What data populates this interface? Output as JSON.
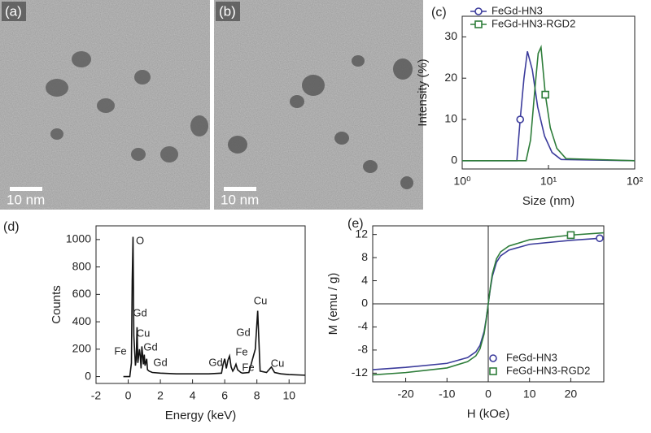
{
  "chart_data": [
    {
      "type": "image",
      "label": "(a)",
      "scale_bar": "10 nm"
    },
    {
      "type": "image",
      "label": "(b)",
      "scale_bar": "10 nm"
    },
    {
      "type": "line",
      "label": "(c)",
      "xlabel": "Size (nm)",
      "ylabel": "Intensity (%)",
      "log_x": true,
      "xlim": [
        1,
        100
      ],
      "xticks": [
        {
          "value": 1,
          "label": "10⁰"
        },
        {
          "value": 10,
          "label": "10¹"
        },
        {
          "value": 100,
          "label": "10²"
        }
      ],
      "ylim": [
        -2,
        35
      ],
      "yticks": [
        0,
        10,
        20,
        30
      ],
      "legend": "upper center",
      "series": [
        {
          "name": "FeGd-HN3",
          "color": "#3c3c9c",
          "marker": "circle",
          "x": [
            1,
            4.3,
            4.7,
            5.2,
            5.7,
            6.5,
            7.5,
            9,
            11,
            14,
            100
          ],
          "values": [
            0,
            0,
            10,
            20,
            26.5,
            22,
            13,
            6,
            2,
            0.3,
            0
          ]
        },
        {
          "name": "FeGd-HN3-RGD2",
          "color": "#2e7d3a",
          "marker": "square",
          "x": [
            1,
            5.5,
            6.2,
            7,
            7.6,
            8.2,
            9.2,
            10.5,
            12.5,
            16,
            100
          ],
          "values": [
            0,
            0,
            5,
            18,
            26,
            27.5,
            16,
            8,
            3,
            0.5,
            0
          ]
        }
      ]
    },
    {
      "type": "line",
      "label": "(d)",
      "xlabel": "Energy (keV)",
      "ylabel": "Counts",
      "xlim": [
        -2,
        11
      ],
      "xticks": [
        -2,
        0,
        2,
        4,
        6,
        8,
        10
      ],
      "ylim": [
        -50,
        1100
      ],
      "yticks": [
        0,
        200,
        400,
        600,
        800,
        1000
      ],
      "annotations": [
        "O",
        "Gd",
        "Cu",
        "Gd",
        "Fe",
        "Gd",
        "Gd",
        "Fe",
        "Fe",
        "Gd",
        "Cu",
        "Cu"
      ],
      "series": [
        {
          "name": null,
          "color": "#111111",
          "x": [
            -0.3,
            0.1,
            0.2,
            0.25,
            0.3,
            0.35,
            0.45,
            0.5,
            0.55,
            0.6,
            0.7,
            0.75,
            0.8,
            0.85,
            0.95,
            1.0,
            1.05,
            1.15,
            1.2,
            1.3,
            1.5,
            2,
            3,
            4,
            5,
            5.8,
            5.9,
            6.0,
            6.1,
            6.2,
            6.3,
            6.4,
            6.5,
            6.6,
            6.7,
            6.8,
            6.9,
            7.0,
            7.1,
            7.5,
            7.9,
            8.05,
            8.2,
            8.6,
            8.9,
            9.1,
            9.5,
            10,
            11
          ],
          "values": [
            0,
            0,
            100,
            700,
            1020,
            300,
            80,
            130,
            360,
            100,
            200,
            150,
            60,
            220,
            90,
            160,
            80,
            130,
            50,
            40,
            30,
            25,
            20,
            20,
            20,
            25,
            90,
            130,
            60,
            120,
            150,
            70,
            40,
            60,
            90,
            50,
            40,
            30,
            25,
            30,
            200,
            480,
            40,
            30,
            70,
            30,
            20,
            15,
            10
          ]
        }
      ]
    },
    {
      "type": "line",
      "label": "(e)",
      "xlabel": "H (kOe)",
      "ylabel": "M (emu / g)",
      "xlim": [
        -28,
        28
      ],
      "xticks": [
        -20,
        -10,
        0,
        10,
        20
      ],
      "ylim": [
        -13.5,
        13.5
      ],
      "yticks": [
        -12,
        -8,
        -4,
        0,
        4,
        8,
        12
      ],
      "legend": "lower right",
      "series": [
        {
          "name": "FeGd-HN3",
          "color": "#3c3c9c",
          "marker": "circle",
          "x": [
            -28,
            -20,
            -10,
            -5,
            -3,
            -2,
            -1,
            -0.5,
            0,
            0.5,
            1,
            2,
            3,
            5,
            10,
            20,
            27,
            28
          ],
          "values": [
            -11.4,
            -11.0,
            -10.3,
            -9.3,
            -8.3,
            -7.2,
            -4.8,
            -2.6,
            0,
            2.6,
            4.8,
            7.2,
            8.3,
            9.3,
            10.3,
            11.0,
            11.35,
            11.4
          ]
        },
        {
          "name": "FeGd-HN3-RGD2",
          "color": "#2e7d3a",
          "marker": "square",
          "x": [
            -28,
            -20,
            -10,
            -5,
            -3,
            -2,
            -1,
            -0.5,
            0,
            0.5,
            1,
            2,
            3,
            5,
            10,
            20,
            28
          ],
          "values": [
            -12.3,
            -11.9,
            -11.1,
            -10.0,
            -9.0,
            -7.8,
            -5.2,
            -2.8,
            0,
            2.8,
            5.2,
            7.8,
            9.0,
            10.0,
            11.1,
            11.9,
            12.3
          ]
        }
      ]
    }
  ]
}
